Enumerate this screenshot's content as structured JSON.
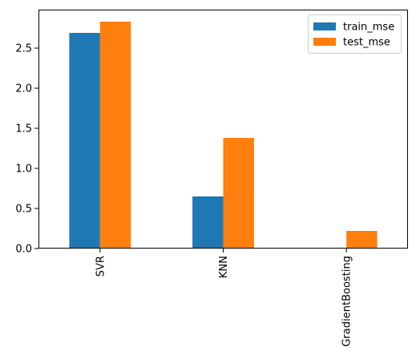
{
  "chart_data": {
    "type": "bar",
    "title": "",
    "xlabel": "",
    "ylabel": "",
    "categories": [
      "SVR",
      "KNN",
      "GradientBoosting"
    ],
    "series": [
      {
        "name": "train_mse",
        "color": "#1f77b4",
        "values": [
          2.69,
          0.65,
          0.01
        ]
      },
      {
        "name": "test_mse",
        "color": "#ff7f0e",
        "values": [
          2.83,
          1.38,
          0.22
        ]
      }
    ],
    "ylim": [
      0,
      2.98
    ],
    "yticks": [
      "0.0",
      "0.5",
      "1.0",
      "1.5",
      "2.0",
      "2.5"
    ],
    "grid": false,
    "legend_position": "top-right"
  }
}
